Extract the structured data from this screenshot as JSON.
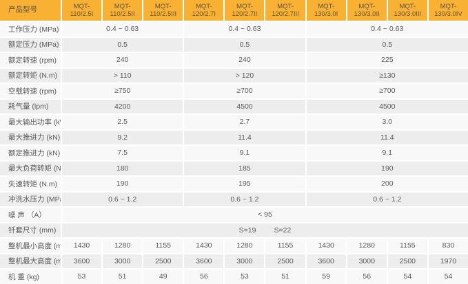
{
  "header": {
    "label": "产品型号",
    "models": [
      "MQT-110/2.5I",
      "MQT-110/2.5II",
      "MQT-110/2.5III",
      "MQT-120/2.7I",
      "MQT-120/2.7II",
      "MQT-120/2.7III",
      "MQT-130/3.0I",
      "MQT-130/3.0II",
      "MQT-130/3.0III",
      "MQT-130/3.0IV"
    ]
  },
  "groups": {
    "sizes": [
      3,
      3,
      4
    ]
  },
  "rows": [
    {
      "label": "工作压力 (MPa)",
      "span": "group",
      "values": [
        "0.4 ~ 0.63",
        "0.4 ~ 0.63",
        "0.4 ~ 0.63"
      ]
    },
    {
      "label": "额定压力 (MPa)",
      "span": "group",
      "values": [
        "0.5",
        "0.5",
        "0.5"
      ]
    },
    {
      "label": "额定转速 (rpm)",
      "span": "group",
      "values": [
        "240",
        "240",
        "225"
      ]
    },
    {
      "label": "额定转矩 (N.m)",
      "span": "group",
      "values": [
        "> 110",
        "> 120",
        "≥130"
      ]
    },
    {
      "label": "空载转速 (rpm)",
      "span": "group",
      "values": [
        "≥750",
        "≥700",
        "≥700"
      ]
    },
    {
      "label": "耗气量 (lpm)",
      "span": "group",
      "values": [
        "4200",
        "4500",
        "4500"
      ]
    },
    {
      "label": "最大输出功率 (kW)",
      "span": "group",
      "values": [
        "2.5",
        "2.7",
        "3.0"
      ]
    },
    {
      "label": "最大推进力 (kN)",
      "span": "group",
      "values": [
        "9.2",
        "11.4",
        "11.4"
      ]
    },
    {
      "label": "额定推进力 (kN)",
      "span": "group",
      "values": [
        "7.5",
        "9.1",
        "9.1"
      ]
    },
    {
      "label": "最大负荷转矩 (N.m)",
      "span": "group",
      "values": [
        "180",
        "185",
        "190"
      ]
    },
    {
      "label": "失速转矩 (N.m)",
      "span": "group",
      "values": [
        "190",
        "195",
        "200"
      ]
    },
    {
      "label": "冲洗水压力 (MPa)",
      "span": "group",
      "values": [
        "0.6 ~ 1.2",
        "0.6 ~ 1.2",
        "0.6 ~ 1.2"
      ]
    },
    {
      "label": "噪 声 （A）",
      "span": "full",
      "values": [
        "< 95"
      ]
    },
    {
      "label": "钎套尺寸 (mm)",
      "span": "full",
      "values": [
        "S=19",
        "S=22"
      ]
    },
    {
      "label": "整机最小高度 (mm)",
      "span": "each",
      "values": [
        "1430",
        "1280",
        "1155",
        "1430",
        "1280",
        "1155",
        "1430",
        "1280",
        "1155",
        "830"
      ]
    },
    {
      "label": "整机最大高度 (mm)",
      "span": "each",
      "values": [
        "3600",
        "3000",
        "2500",
        "3600",
        "3000",
        "2500",
        "3600",
        "3000",
        "2500",
        "1970"
      ]
    },
    {
      "label": "机 重 (kg)",
      "span": "each",
      "values": [
        "53",
        "51",
        "49",
        "56",
        "53",
        "51",
        "59",
        "56",
        "54",
        "54"
      ]
    }
  ],
  "colors": {
    "header_bg": "#F8B133",
    "header_text": "#5E5346",
    "body_text": "#595959",
    "row_light": "#F8F8F8",
    "row_dark": "#EDEDED",
    "gap": "#FFFFFF"
  }
}
